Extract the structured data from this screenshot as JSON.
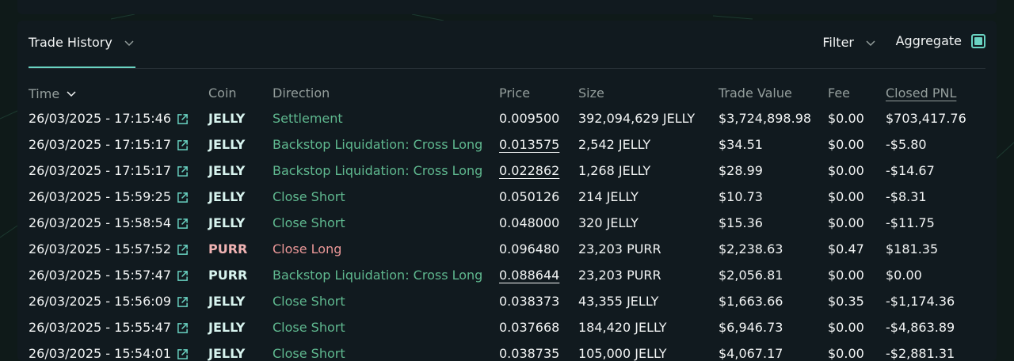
{
  "tabbar": {
    "tab_label": "Trade History",
    "filter_label": "Filter",
    "aggregate_label": "Aggregate",
    "aggregate_checked": true
  },
  "columns": {
    "time": "Time",
    "coin": "Coin",
    "direction": "Direction",
    "price": "Price",
    "size": "Size",
    "trade_value": "Trade Value",
    "fee": "Fee",
    "closed_pnl": "Closed PNL"
  },
  "colors": {
    "accent": "#6ad3c2",
    "long_green": "#5fb88f",
    "short_red": "#ea9797"
  },
  "rows": [
    {
      "time": "26/03/2025 - 17:15:46",
      "coin": "JELLY",
      "coin_color": "green",
      "direction": "Settlement",
      "dir_color": "green",
      "price": "0.009500",
      "price_underlined": false,
      "size": "392,094,629 JELLY",
      "trade_value": "$3,724,898.98",
      "fee": "$0.00",
      "closed_pnl": "$703,417.76"
    },
    {
      "time": "26/03/2025 - 17:15:17",
      "coin": "JELLY",
      "coin_color": "green",
      "direction": "Backstop Liquidation: Cross Long",
      "dir_color": "green",
      "price": "0.013575",
      "price_underlined": true,
      "size": "2,542 JELLY",
      "trade_value": "$34.51",
      "fee": "$0.00",
      "closed_pnl": "-$5.80"
    },
    {
      "time": "26/03/2025 - 17:15:17",
      "coin": "JELLY",
      "coin_color": "green",
      "direction": "Backstop Liquidation: Cross Long",
      "dir_color": "green",
      "price": "0.022862",
      "price_underlined": true,
      "size": "1,268 JELLY",
      "trade_value": "$28.99",
      "fee": "$0.00",
      "closed_pnl": "-$14.67"
    },
    {
      "time": "26/03/2025 - 15:59:25",
      "coin": "JELLY",
      "coin_color": "green",
      "direction": "Close Short",
      "dir_color": "green",
      "price": "0.050126",
      "price_underlined": false,
      "size": "214 JELLY",
      "trade_value": "$10.73",
      "fee": "$0.00",
      "closed_pnl": "-$8.31"
    },
    {
      "time": "26/03/2025 - 15:58:54",
      "coin": "JELLY",
      "coin_color": "green",
      "direction": "Close Short",
      "dir_color": "green",
      "price": "0.048000",
      "price_underlined": false,
      "size": "320 JELLY",
      "trade_value": "$15.36",
      "fee": "$0.00",
      "closed_pnl": "-$11.75"
    },
    {
      "time": "26/03/2025 - 15:57:52",
      "coin": "PURR",
      "coin_color": "red",
      "direction": "Close Long",
      "dir_color": "red",
      "price": "0.096480",
      "price_underlined": false,
      "size": "23,203 PURR",
      "trade_value": "$2,238.63",
      "fee": "$0.47",
      "closed_pnl": "$181.35"
    },
    {
      "time": "26/03/2025 - 15:57:47",
      "coin": "PURR",
      "coin_color": "green",
      "direction": "Backstop Liquidation: Cross Long",
      "dir_color": "green",
      "price": "0.088644",
      "price_underlined": true,
      "size": "23,203 PURR",
      "trade_value": "$2,056.81",
      "fee": "$0.00",
      "closed_pnl": "$0.00"
    },
    {
      "time": "26/03/2025 - 15:56:09",
      "coin": "JELLY",
      "coin_color": "green",
      "direction": "Close Short",
      "dir_color": "green",
      "price": "0.038373",
      "price_underlined": false,
      "size": "43,355 JELLY",
      "trade_value": "$1,663.66",
      "fee": "$0.35",
      "closed_pnl": "-$1,174.36"
    },
    {
      "time": "26/03/2025 - 15:55:47",
      "coin": "JELLY",
      "coin_color": "green",
      "direction": "Close Short",
      "dir_color": "green",
      "price": "0.037668",
      "price_underlined": false,
      "size": "184,420 JELLY",
      "trade_value": "$6,946.73",
      "fee": "$0.00",
      "closed_pnl": "-$4,863.89"
    },
    {
      "time": "26/03/2025 - 15:54:01",
      "coin": "JELLY",
      "coin_color": "green",
      "direction": "Close Short",
      "dir_color": "green",
      "price": "0.038735",
      "price_underlined": false,
      "size": "105,000 JELLY",
      "trade_value": "$4,067.17",
      "fee": "$0.00",
      "closed_pnl": "-$2,881.31"
    }
  ]
}
